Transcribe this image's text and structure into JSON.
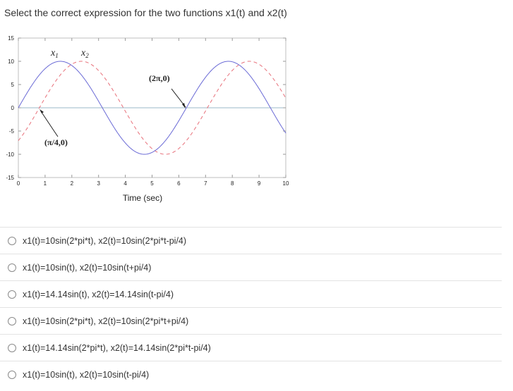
{
  "question": {
    "text": "Select the correct expression for the two functions x1(t) and x2(t)"
  },
  "chart_data": {
    "type": "line",
    "xlabel": "Time (sec)",
    "ylabel": "",
    "xlim": [
      0,
      10
    ],
    "ylim": [
      -15,
      15
    ],
    "x_ticks": [
      "0",
      "1",
      "2",
      "3",
      "4",
      "5",
      "6",
      "7",
      "8",
      "9",
      "10"
    ],
    "y_ticks": [
      "15",
      "10",
      "5",
      "0",
      "-5",
      "-10",
      "-15"
    ],
    "grid": false,
    "series": [
      {
        "name": "x1",
        "amplitude": 10,
        "phase": 0,
        "color": "#6b6bd6",
        "style": "solid"
      },
      {
        "name": "x2",
        "amplitude": 10,
        "phase": -0.785,
        "color": "#e8707a",
        "style": "dashed"
      }
    ],
    "series_labels": {
      "x1_main": "x",
      "x1_sub": "1",
      "x2_main": "x",
      "x2_sub": "2"
    },
    "annotations": [
      {
        "text": "(2π,0)",
        "x": 6.283,
        "y": 0
      },
      {
        "text": "(π/4,0)",
        "x": 0.785,
        "y": 0
      }
    ],
    "zero_line_color": "#9bb8c8"
  },
  "options": [
    {
      "label": "x1(t)=10sin(2*pi*t), x2(t)=10sin(2*pi*t-pi/4)"
    },
    {
      "label": "x1(t)=10sin(t), x2(t)=10sin(t+pi/4)"
    },
    {
      "label": "x1(t)=14.14sin(t), x2(t)=14.14sin(t-pi/4)"
    },
    {
      "label": "x1(t)=10sin(2*pi*t), x2(t)=10sin(2*pi*t+pi/4)"
    },
    {
      "label": "x1(t)=14.14sin(2*pi*t), x2(t)=14.14sin(2*pi*t-pi/4)"
    },
    {
      "label": "x1(t)=10sin(t), x2(t)=10sin(t-pi/4)"
    }
  ]
}
